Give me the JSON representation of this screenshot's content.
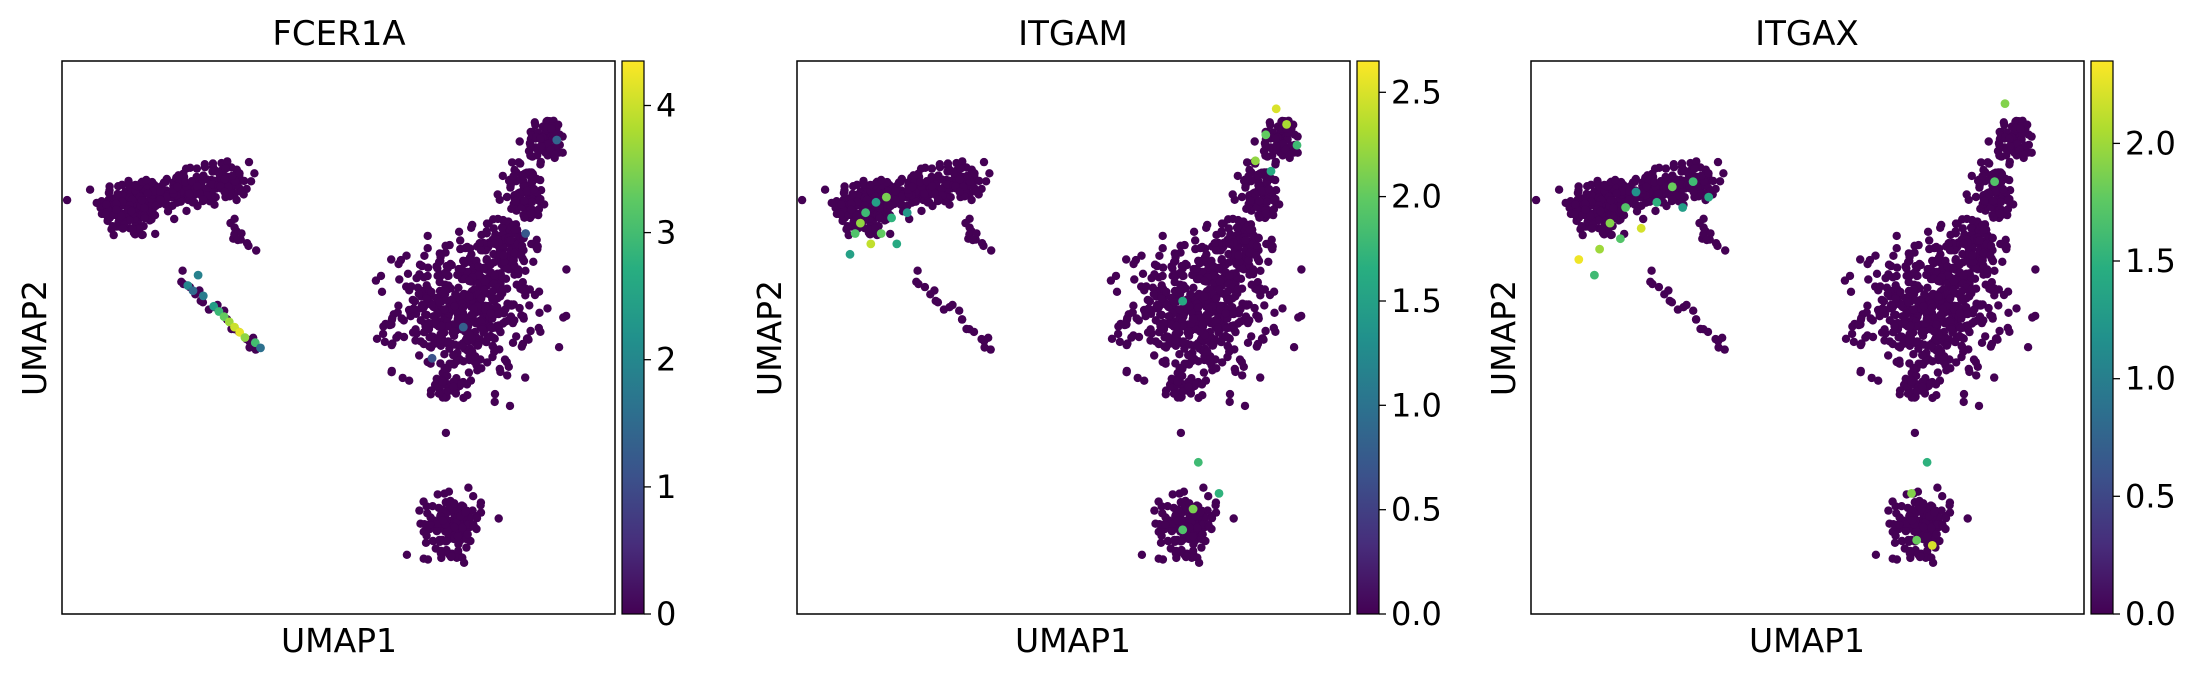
{
  "figure": {
    "panels": [
      {
        "title": "FCER1A",
        "xlabel": "UMAP1",
        "ylabel": "UMAP2",
        "colorbar": {
          "vmin": 0,
          "vmax": 4.35,
          "ticks": [
            "0",
            "1",
            "2",
            "3",
            "4"
          ],
          "tick_values": [
            0,
            1,
            2,
            3,
            4
          ]
        }
      },
      {
        "title": "ITGAM",
        "xlabel": "UMAP1",
        "ylabel": "UMAP2",
        "colorbar": {
          "vmin": 0,
          "vmax": 2.65,
          "ticks": [
            "0.0",
            "0.5",
            "1.0",
            "1.5",
            "2.0",
            "2.5"
          ],
          "tick_values": [
            0,
            0.5,
            1.0,
            1.5,
            2.0,
            2.5
          ]
        }
      },
      {
        "title": "ITGAX",
        "xlabel": "UMAP1",
        "ylabel": "UMAP2",
        "colorbar": {
          "vmin": 0,
          "vmax": 2.35,
          "ticks": [
            "0.0",
            "0.5",
            "1.0",
            "1.5",
            "2.0"
          ],
          "tick_values": [
            0,
            0.5,
            1.0,
            1.5,
            2.0
          ]
        }
      }
    ]
  },
  "chart_data": [
    {
      "type": "scatter",
      "title": "FCER1A",
      "xlabel": "UMAP1",
      "ylabel": "UMAP2",
      "colormap": "viridis",
      "color_range": [
        0,
        4.35
      ],
      "clusters": [
        {
          "name": "",
          "x": 0.1,
          "y": 0.75
        },
        {
          "name": "",
          "x": 0.28,
          "y": 0.8
        },
        {
          "name": "",
          "x": 0.3,
          "y": 0.57
        },
        {
          "name": "",
          "x": 0.74,
          "y": 0.55
        },
        {
          "name": "",
          "x": 0.88,
          "y": 0.8
        },
        {
          "name": "",
          "x": 0.72,
          "y": 0.14
        }
      ],
      "highlighted_cells": [
        {
          "x": 0.21,
          "y": 0.6,
          "value": 2.0
        },
        {
          "x": 0.24,
          "y": 0.58,
          "value": 1.8
        },
        {
          "x": 0.26,
          "y": 0.56,
          "value": 2.4
        },
        {
          "x": 0.27,
          "y": 0.55,
          "value": 2.9
        },
        {
          "x": 0.28,
          "y": 0.54,
          "value": 3.3
        },
        {
          "x": 0.29,
          "y": 0.53,
          "value": 3.7
        },
        {
          "x": 0.3,
          "y": 0.52,
          "value": 4.0
        },
        {
          "x": 0.31,
          "y": 0.51,
          "value": 4.2
        },
        {
          "x": 0.32,
          "y": 0.5,
          "value": 3.6
        },
        {
          "x": 0.34,
          "y": 0.49,
          "value": 3.0
        },
        {
          "x": 0.35,
          "y": 0.48,
          "value": 1.6
        },
        {
          "x": 0.23,
          "y": 0.62,
          "value": 1.9
        },
        {
          "x": 0.22,
          "y": 0.59,
          "value": 1.5
        },
        {
          "x": 0.74,
          "y": 0.52,
          "value": 1.3
        },
        {
          "x": 0.68,
          "y": 0.46,
          "value": 1.1
        },
        {
          "x": 0.86,
          "y": 0.7,
          "value": 1.2
        },
        {
          "x": 0.92,
          "y": 0.88,
          "value": 1.4
        }
      ]
    },
    {
      "type": "scatter",
      "title": "ITGAM",
      "xlabel": "UMAP1",
      "ylabel": "UMAP2",
      "colormap": "viridis",
      "color_range": [
        0,
        2.65
      ],
      "clusters": [
        {
          "name": "",
          "x": 0.1,
          "y": 0.75
        },
        {
          "name": "",
          "x": 0.28,
          "y": 0.8
        },
        {
          "name": "",
          "x": 0.3,
          "y": 0.57
        },
        {
          "name": "",
          "x": 0.74,
          "y": 0.55
        },
        {
          "name": "",
          "x": 0.88,
          "y": 0.8
        },
        {
          "name": "",
          "x": 0.72,
          "y": 0.14
        }
      ],
      "highlighted_cells": [
        {
          "x": 0.09,
          "y": 0.72,
          "value": 2.2
        },
        {
          "x": 0.11,
          "y": 0.68,
          "value": 2.4
        },
        {
          "x": 0.13,
          "y": 0.7,
          "value": 2.0
        },
        {
          "x": 0.1,
          "y": 0.74,
          "value": 1.8
        },
        {
          "x": 0.15,
          "y": 0.73,
          "value": 1.7
        },
        {
          "x": 0.12,
          "y": 0.76,
          "value": 1.5
        },
        {
          "x": 0.08,
          "y": 0.7,
          "value": 1.9
        },
        {
          "x": 0.16,
          "y": 0.68,
          "value": 1.6
        },
        {
          "x": 0.14,
          "y": 0.77,
          "value": 2.1
        },
        {
          "x": 0.18,
          "y": 0.74,
          "value": 1.4
        },
        {
          "x": 0.07,
          "y": 0.66,
          "value": 1.5
        },
        {
          "x": 0.89,
          "y": 0.94,
          "value": 2.5
        },
        {
          "x": 0.91,
          "y": 0.91,
          "value": 2.3
        },
        {
          "x": 0.87,
          "y": 0.89,
          "value": 2.0
        },
        {
          "x": 0.93,
          "y": 0.87,
          "value": 1.8
        },
        {
          "x": 0.85,
          "y": 0.84,
          "value": 2.2
        },
        {
          "x": 0.88,
          "y": 0.82,
          "value": 1.6
        },
        {
          "x": 0.73,
          "y": 0.17,
          "value": 2.1
        },
        {
          "x": 0.71,
          "y": 0.13,
          "value": 1.9
        },
        {
          "x": 0.78,
          "y": 0.2,
          "value": 1.7
        },
        {
          "x": 0.74,
          "y": 0.26,
          "value": 1.8
        },
        {
          "x": 0.71,
          "y": 0.57,
          "value": 1.6
        }
      ]
    },
    {
      "type": "scatter",
      "title": "ITGAX",
      "xlabel": "UMAP1",
      "ylabel": "UMAP2",
      "colormap": "viridis",
      "color_range": [
        0,
        2.35
      ],
      "clusters": [
        {
          "name": "",
          "x": 0.1,
          "y": 0.75
        },
        {
          "name": "",
          "x": 0.28,
          "y": 0.8
        },
        {
          "name": "",
          "x": 0.3,
          "y": 0.57
        },
        {
          "name": "",
          "x": 0.74,
          "y": 0.55
        },
        {
          "name": "",
          "x": 0.88,
          "y": 0.8
        },
        {
          "name": "",
          "x": 0.72,
          "y": 0.14
        }
      ],
      "highlighted_cells": [
        {
          "x": 0.06,
          "y": 0.65,
          "value": 2.3
        },
        {
          "x": 0.1,
          "y": 0.67,
          "value": 2.0
        },
        {
          "x": 0.12,
          "y": 0.72,
          "value": 1.9
        },
        {
          "x": 0.15,
          "y": 0.75,
          "value": 1.7
        },
        {
          "x": 0.18,
          "y": 0.71,
          "value": 2.2
        },
        {
          "x": 0.21,
          "y": 0.76,
          "value": 1.5
        },
        {
          "x": 0.24,
          "y": 0.79,
          "value": 1.8
        },
        {
          "x": 0.28,
          "y": 0.8,
          "value": 1.6
        },
        {
          "x": 0.31,
          "y": 0.77,
          "value": 1.4
        },
        {
          "x": 0.26,
          "y": 0.75,
          "value": 1.3
        },
        {
          "x": 0.14,
          "y": 0.69,
          "value": 1.7
        },
        {
          "x": 0.09,
          "y": 0.62,
          "value": 1.6
        },
        {
          "x": 0.17,
          "y": 0.78,
          "value": 1.2
        },
        {
          "x": 0.88,
          "y": 0.95,
          "value": 1.9
        },
        {
          "x": 0.86,
          "y": 0.8,
          "value": 1.7
        },
        {
          "x": 0.7,
          "y": 0.2,
          "value": 1.9
        },
        {
          "x": 0.74,
          "y": 0.1,
          "value": 2.2
        },
        {
          "x": 0.73,
          "y": 0.26,
          "value": 1.5
        },
        {
          "x": 0.71,
          "y": 0.11,
          "value": 1.8
        }
      ]
    }
  ]
}
